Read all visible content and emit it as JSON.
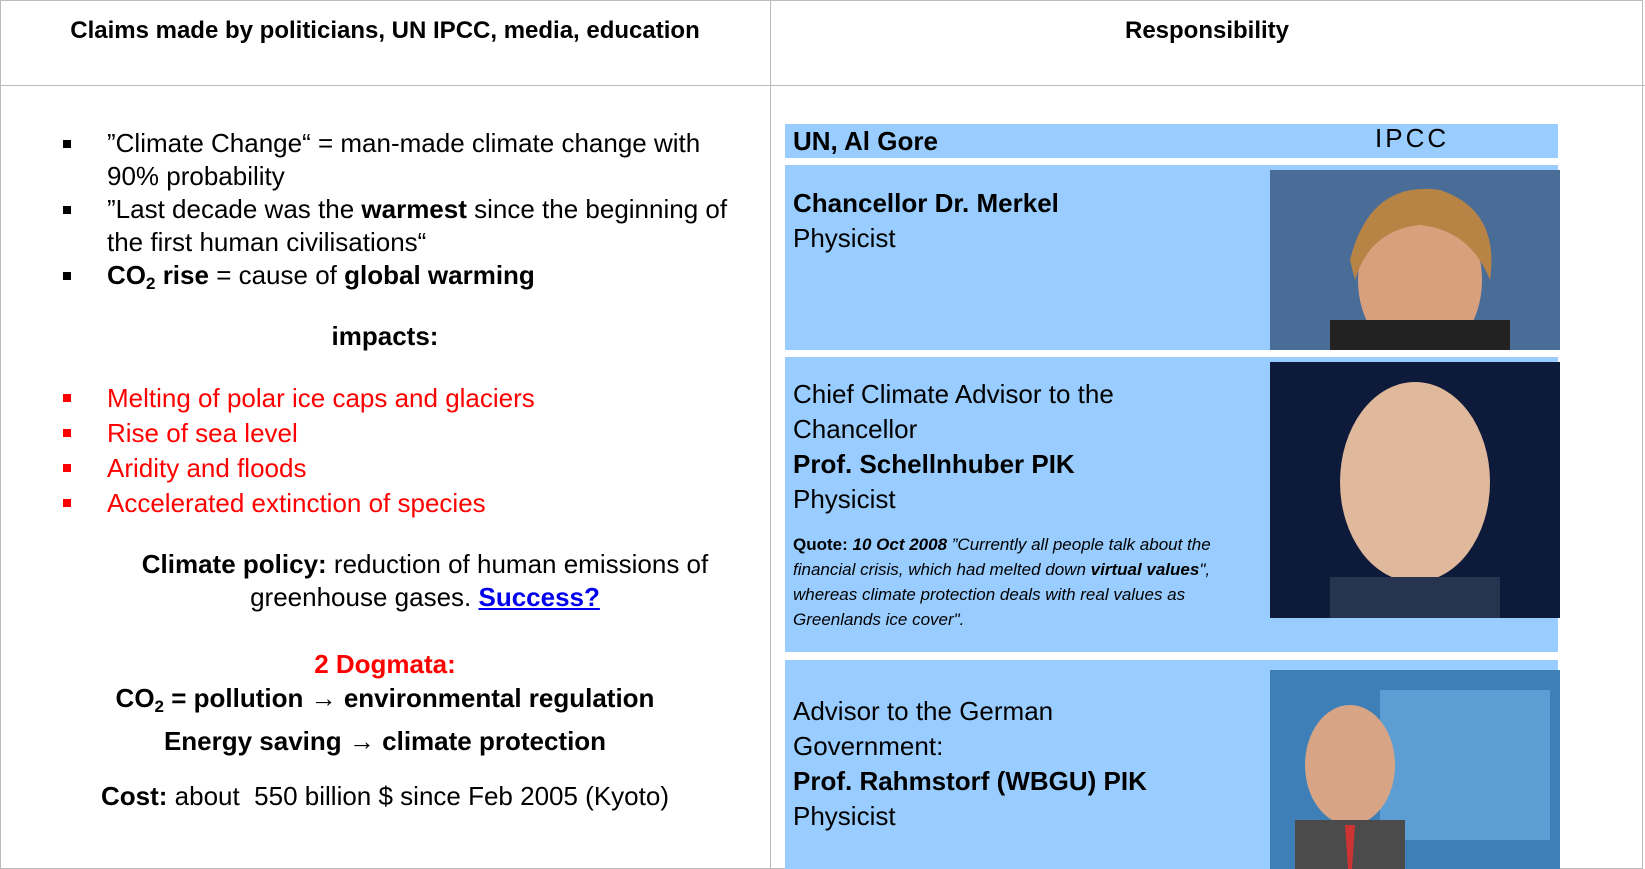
{
  "header": {
    "left": "Claims made by politicians, UN IPCC, media, education",
    "right": "Responsibility"
  },
  "claims": [
    [
      "”Climate Change“ = man-made climate change with 90% probability"
    ],
    [
      "”Last decade was the ",
      "warmest",
      " since the beginning of the first human civilisations“"
    ],
    [
      "CO",
      "2",
      " rise",
      " = cause of ",
      "global warming"
    ]
  ],
  "impacts_heading": "impacts:",
  "impacts": [
    "Melting of polar ice caps and glaciers",
    "Rise of sea level",
    "Aridity and floods",
    "Accelerated extinction of species"
  ],
  "policy": [
    "Climate policy:",
    " reduction of human emissions of greenhouse gases. ",
    "Success?"
  ],
  "dogmata": {
    "title": "2 Dogmata:",
    "lines": [
      [
        "CO",
        "2",
        " = pollution ",
        "→",
        " environmental regulation"
      ],
      [
        "Energy saving ",
        "→",
        " climate protection"
      ]
    ]
  },
  "cost": [
    "Cost:",
    " about  550 billion $ since Feb 2005 (Kyoto)"
  ],
  "responsibility": [
    {
      "name": "UN, Al Gore",
      "org": "IPCC"
    },
    {
      "name": "Chancellor Dr. Merkel",
      "role": "Physicist"
    },
    {
      "title": "Chief Climate Advisor to the Chancellor",
      "name": "Prof. Schellnhuber PIK",
      "role": "Physicist",
      "quote": [
        "Quote:",
        "10 Oct 2008",
        " ”Currently all people talk about the financial crisis, which had melted down ",
        "virtual values",
        "\", whereas climate protection deals with real values as Greenlands ice cover\"."
      ]
    },
    {
      "title": "Advisor to the German Government:",
      "name": "Prof. Rahmstorf (WBGU) PIK",
      "role": "Physicist"
    }
  ]
}
